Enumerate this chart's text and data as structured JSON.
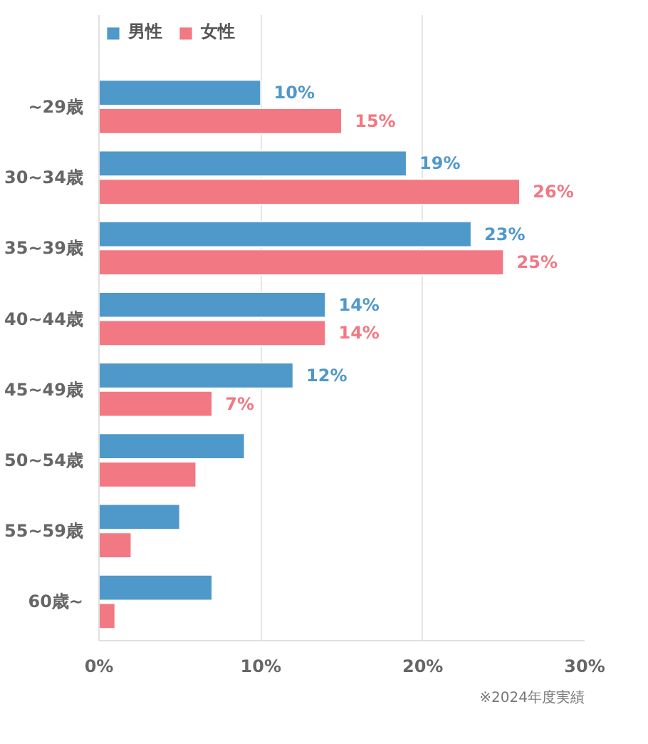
{
  "chart_data": {
    "type": "bar",
    "orientation": "horizontal",
    "categories": [
      "~29歳",
      "30~34歳",
      "35~39歳",
      "40~44歳",
      "45~49歳",
      "50~54歳",
      "55~59歳",
      "60歳~"
    ],
    "series": [
      {
        "name": "男性",
        "color": "#4f98ca",
        "values": [
          10,
          19,
          23,
          14,
          12,
          9,
          5,
          7
        ],
        "value_labels": [
          "10%",
          "19%",
          "23%",
          "14%",
          "12%",
          null,
          null,
          null
        ]
      },
      {
        "name": "女性",
        "color": "#f27883",
        "values": [
          15,
          26,
          25,
          14,
          7,
          6,
          2,
          1
        ],
        "value_labels": [
          "15%",
          "26%",
          "25%",
          "14%",
          "7%",
          null,
          null,
          null
        ]
      }
    ],
    "xlim": [
      0,
      30
    ],
    "xticks": [
      {
        "value": 0,
        "label": "0%"
      },
      {
        "value": 10,
        "label": "10%"
      },
      {
        "value": 20,
        "label": "20%"
      },
      {
        "value": 30,
        "label": "30%"
      }
    ],
    "grid": "x",
    "legend": "top left",
    "annotations": [
      "※2024年度実績"
    ]
  }
}
